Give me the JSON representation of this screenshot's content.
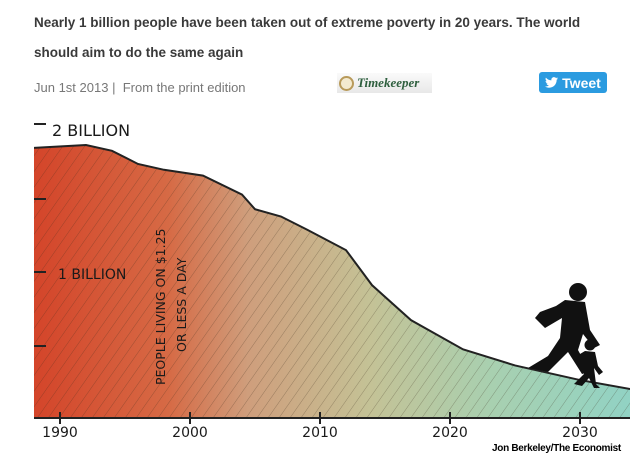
{
  "article": {
    "headline": "Nearly 1 billion people have been taken out of extreme poverty in 20 years. The world should aim to do the same again",
    "date": "Jun 1st 2013",
    "separator": "|",
    "edition": "From the print edition",
    "timekeeper_label": "Timekeeper",
    "tweet_label": "Tweet"
  },
  "illustration": {
    "y_labels": [
      "2 BILLION",
      "1 BILLION"
    ],
    "series_label_line1": "PEOPLE LIVING ON $1.25",
    "series_label_line2": "OR LESS A DAY",
    "x_ticks": [
      "1990",
      "2000",
      "2010",
      "2020",
      "2030"
    ],
    "credit": "Jon Berkeley/The Economist",
    "colors": {
      "start": "#d4452a",
      "mid": "#c9a985",
      "end": "#8fd3c6"
    },
    "series": [
      {
        "year": 1988,
        "billions": 1.85
      },
      {
        "year": 1992,
        "billions": 1.87
      },
      {
        "year": 1994,
        "billions": 1.83
      },
      {
        "year": 1996,
        "billions": 1.74
      },
      {
        "year": 1998,
        "billions": 1.7
      },
      {
        "year": 2001,
        "billions": 1.66
      },
      {
        "year": 2004,
        "billions": 1.53
      },
      {
        "year": 2005,
        "billions": 1.43
      },
      {
        "year": 2007,
        "billions": 1.38
      },
      {
        "year": 2009,
        "billions": 1.29
      },
      {
        "year": 2012,
        "billions": 1.15
      },
      {
        "year": 2014,
        "billions": 0.91
      },
      {
        "year": 2017,
        "billions": 0.67
      },
      {
        "year": 2021,
        "billions": 0.47
      },
      {
        "year": 2025,
        "billions": 0.36
      },
      {
        "year": 2030,
        "billions": 0.26
      },
      {
        "year": 2035,
        "billions": 0.18
      }
    ]
  }
}
